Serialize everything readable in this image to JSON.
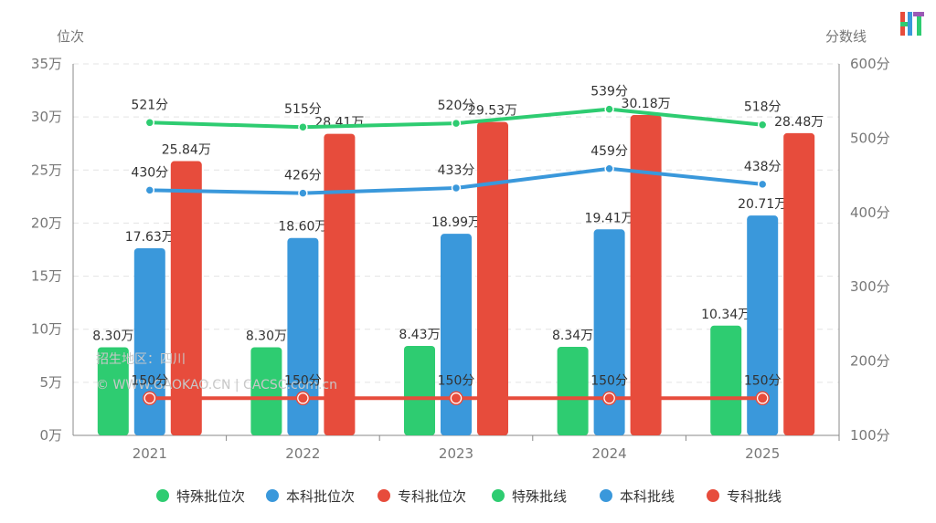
{
  "chart_data": {
    "type": "bar",
    "categories": [
      "2021",
      "2022",
      "2023",
      "2024",
      "2025"
    ],
    "y_left": {
      "title": "位次",
      "ylim": [
        0,
        35
      ],
      "ticks": [
        "0万",
        "5万",
        "10万",
        "15万",
        "20万",
        "25万",
        "30万",
        "35万"
      ]
    },
    "y_right": {
      "title": "分数线",
      "ylim": [
        100,
        600
      ],
      "ticks": [
        "100分",
        "200分",
        "300分",
        "400分",
        "500分",
        "600分"
      ]
    },
    "bar_series": [
      {
        "name": "特殊批位次",
        "color": "#2ecc71",
        "values": [
          8.3,
          8.3,
          8.43,
          8.34,
          10.34
        ],
        "labels": [
          "8.30万",
          "8.30万",
          "8.43万",
          "8.34万",
          "10.34万"
        ]
      },
      {
        "name": "本科批位次",
        "color": "#3a98db",
        "values": [
          17.63,
          18.6,
          18.99,
          19.41,
          20.71
        ],
        "labels": [
          "17.63万",
          "18.60万",
          "18.99万",
          "19.41万",
          "20.71万"
        ]
      },
      {
        "name": "专科批位次",
        "color": "#e74c3c",
        "values": [
          25.84,
          28.41,
          29.53,
          30.18,
          28.48
        ],
        "labels": [
          "25.84万",
          "28.41万",
          "29.53万",
          "30.18万",
          "28.48万"
        ]
      }
    ],
    "line_series": [
      {
        "name": "特殊批线",
        "color": "#2ecc71",
        "values": [
          521,
          515,
          520,
          539,
          518
        ],
        "labels": [
          "521分",
          "515分",
          "520分",
          "539分",
          "518分"
        ]
      },
      {
        "name": "本科批线",
        "color": "#3a98db",
        "values": [
          430,
          426,
          433,
          459,
          438
        ],
        "labels": [
          "430分",
          "426分",
          "433分",
          "459分",
          "438分"
        ]
      },
      {
        "name": "专科批线",
        "color": "#e74c3c",
        "values": [
          150,
          150,
          150,
          150,
          150
        ],
        "labels": [
          "150分",
          "150分",
          "150分",
          "150分",
          "150分"
        ]
      }
    ],
    "grid": true,
    "legend": "bottom-center"
  },
  "watermark": {
    "line1": "招生地区：四川",
    "line2": "© WWW.GAOKAO.CN | CACSC.com.cn"
  },
  "logo": {
    "text": "HT",
    "colors": [
      "#e74c3c",
      "#2ecc71",
      "#3a98db",
      "#9b59b6"
    ]
  }
}
